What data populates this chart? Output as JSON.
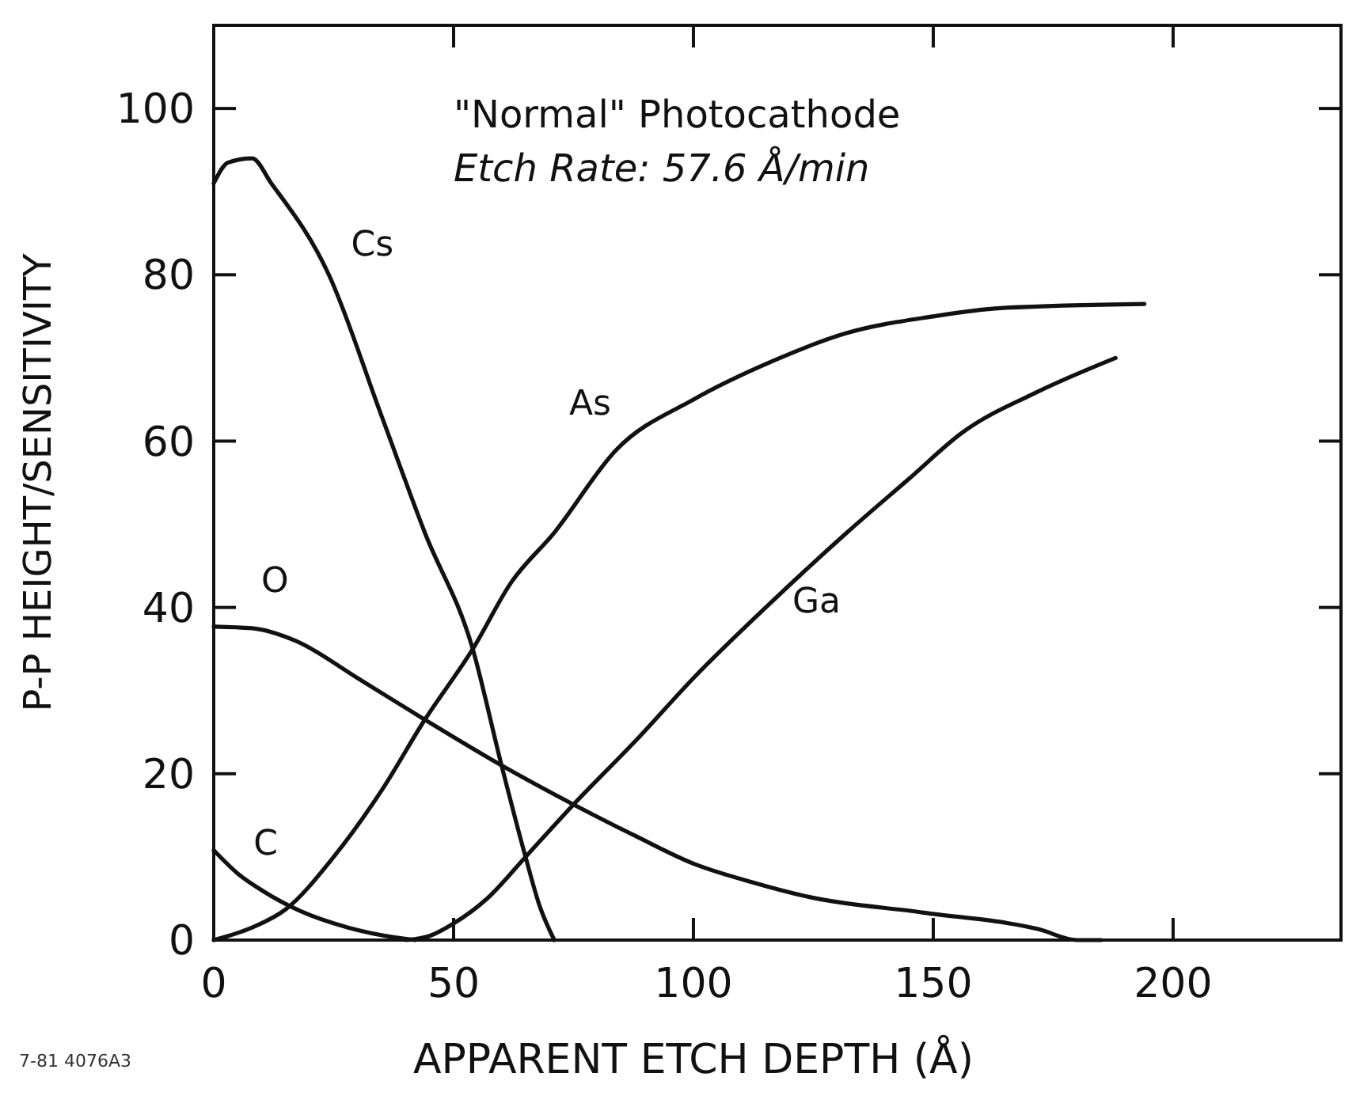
{
  "chart_data": {
    "type": "line",
    "title": "\"Normal\" Photocathode",
    "subtitle": "Etch Rate: 57.6 Å/min",
    "xlabel": "APPARENT ETCH DEPTH (Å)",
    "ylabel": "P-P HEIGHT/SENSITIVITY",
    "xlim": [
      0,
      235
    ],
    "ylim": [
      0,
      110
    ],
    "xticks": [
      0,
      50,
      100,
      150,
      200
    ],
    "yticks": [
      0,
      20,
      40,
      60,
      80,
      100
    ],
    "grid": false,
    "marker": "none",
    "line_style": "solid",
    "annotations": [
      "7-81 4076A3"
    ],
    "series": [
      {
        "name": "Cs",
        "color": "#111111",
        "x": [
          0,
          3,
          8,
          12,
          24,
          35,
          44,
          54,
          60,
          65,
          68,
          71
        ],
        "values": [
          91,
          93.5,
          94,
          91,
          80,
          63,
          49,
          35,
          21,
          10,
          4,
          0
        ]
      },
      {
        "name": "As",
        "color": "#111111",
        "x": [
          0,
          8,
          15,
          25,
          35,
          44,
          54,
          62,
          71,
          84,
          100,
          116,
          132,
          150,
          164,
          194
        ],
        "values": [
          0,
          1.5,
          3.7,
          10,
          18,
          26.5,
          35,
          43,
          49,
          59,
          65,
          69.5,
          73,
          75,
          76,
          76.5
        ]
      },
      {
        "name": "Ga",
        "color": "#111111",
        "x": [
          40,
          45,
          50,
          57,
          65,
          75,
          88,
          100,
          116,
          132,
          145,
          156,
          172,
          188
        ],
        "values": [
          0,
          0.5,
          2,
          5,
          10,
          16.3,
          24,
          31.5,
          40.5,
          49,
          55.5,
          61,
          66,
          70
        ]
      },
      {
        "name": "O",
        "color": "#111111",
        "x": [
          0,
          8,
          17,
          30,
          44,
          60,
          75,
          88,
          100,
          112,
          124,
          148,
          172,
          180,
          185
        ],
        "values": [
          37.7,
          37.5,
          36,
          31.5,
          26.5,
          21,
          16.3,
          12.5,
          9.2,
          7,
          5.2,
          3.3,
          1.3,
          0,
          0
        ]
      },
      {
        "name": "C",
        "color": "#111111",
        "x": [
          0,
          5,
          10,
          18,
          28,
          38,
          42
        ],
        "values": [
          10.8,
          8,
          6,
          3.5,
          1.5,
          0.3,
          0
        ]
      }
    ]
  }
}
